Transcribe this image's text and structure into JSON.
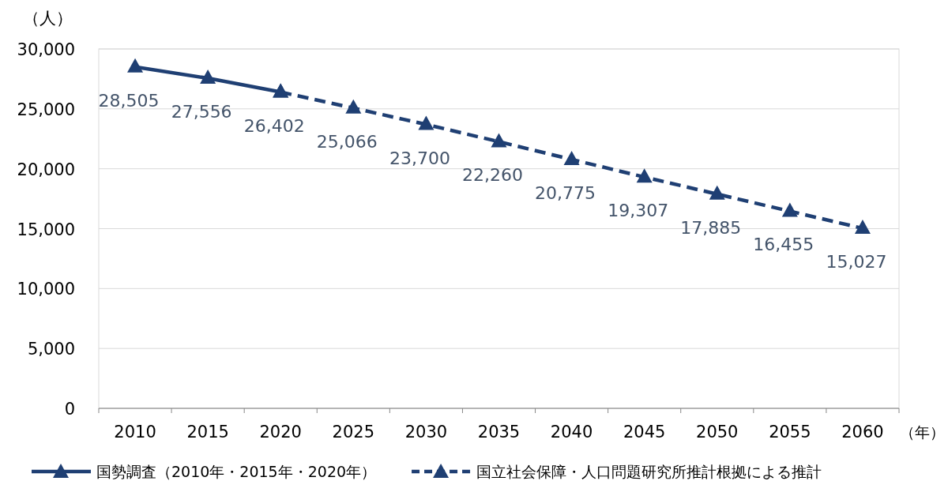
{
  "chart_data": {
    "type": "line",
    "ylabel": "（人）",
    "xlabel": "（年）",
    "categories": [
      "2010",
      "2015",
      "2020",
      "2025",
      "2030",
      "2035",
      "2040",
      "2045",
      "2050",
      "2055",
      "2060"
    ],
    "ylim": [
      0,
      30000
    ],
    "yticks": [
      0,
      {
        "value": 5000,
        "label": "5,000"
      },
      {
        "value": 10000,
        "label": "10,000"
      },
      {
        "value": 15000,
        "label": "15,000"
      },
      {
        "value": 20000,
        "label": "20,000"
      },
      {
        "value": 25000,
        "label": "25,000"
      },
      {
        "value": 30000,
        "label": "30,000"
      }
    ],
    "grid": "y",
    "legend": "bottom",
    "marker": "triangle",
    "series": [
      {
        "name": "国勢調査（2010年・2015年・2020年）",
        "color": "#1f3f73",
        "line_style": "solid",
        "values": [
          28505,
          27556,
          26402,
          null,
          null,
          null,
          null,
          null,
          null,
          null,
          null
        ],
        "value_labels": [
          "28,505",
          "27,556",
          "26,402",
          null,
          null,
          null,
          null,
          null,
          null,
          null,
          null
        ]
      },
      {
        "name": "国立社会保障・人口問題研究所推計根拠による推計",
        "color": "#1f3f73",
        "line_style": "dashed",
        "values": [
          null,
          null,
          26402,
          25066,
          23700,
          22260,
          20775,
          19307,
          17885,
          16455,
          15027
        ],
        "value_labels": [
          null,
          null,
          null,
          "25,066",
          "23,700",
          "22,260",
          "20,775",
          "19,307",
          "17,885",
          "16,455",
          "15,027"
        ]
      }
    ]
  }
}
